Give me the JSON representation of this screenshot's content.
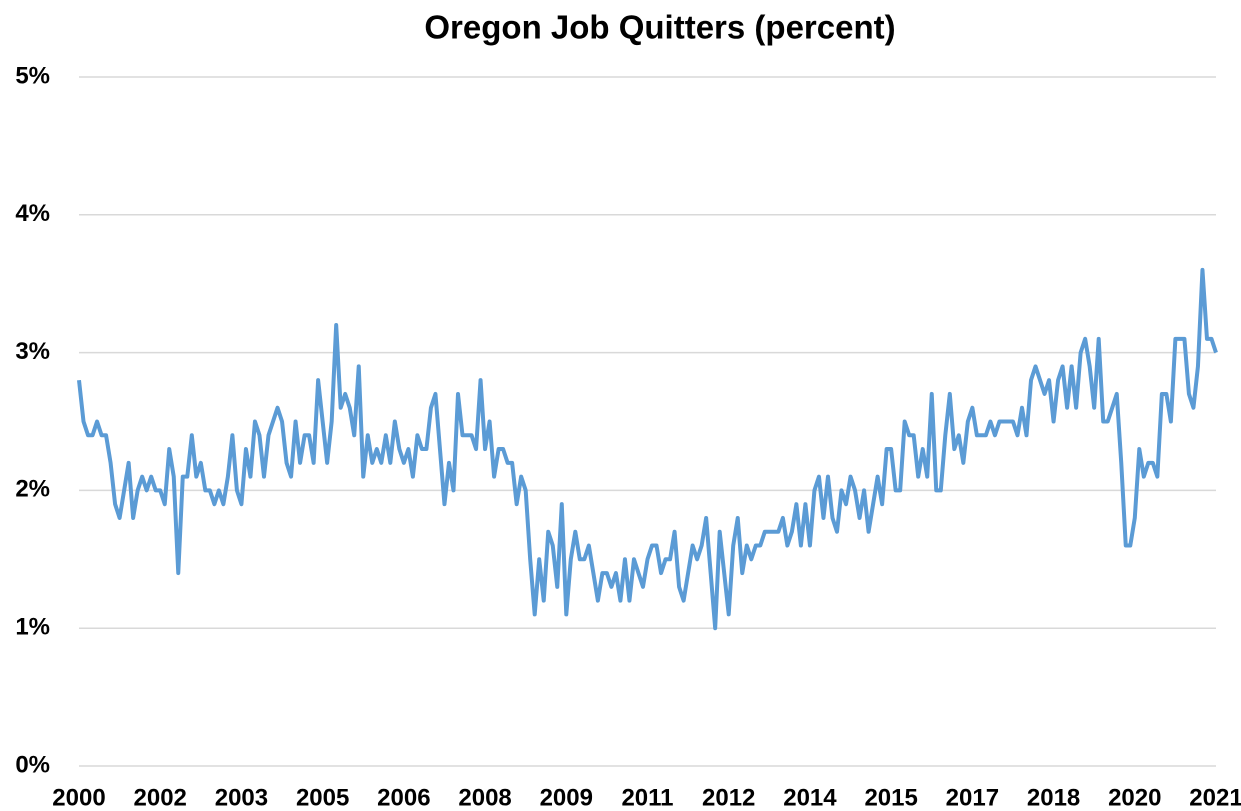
{
  "chart_data": {
    "type": "line",
    "title": "Oregon Job Quitters (percent)",
    "categories": [
      "2000",
      null,
      null,
      null,
      null,
      null,
      null,
      null,
      null,
      null,
      null,
      null,
      null,
      null,
      null,
      null,
      null,
      null,
      "2002",
      null,
      null,
      null,
      null,
      null,
      null,
      null,
      null,
      null,
      null,
      null,
      null,
      null,
      null,
      null,
      null,
      null,
      "2003",
      null,
      null,
      null,
      null,
      null,
      null,
      null,
      null,
      null,
      null,
      null,
      null,
      null,
      null,
      null,
      null,
      null,
      "2005",
      null,
      null,
      null,
      null,
      null,
      null,
      null,
      null,
      null,
      null,
      null,
      null,
      null,
      null,
      null,
      null,
      null,
      "2006",
      null,
      null,
      null,
      null,
      null,
      null,
      null,
      null,
      null,
      null,
      null,
      null,
      null,
      null,
      null,
      null,
      null,
      "2008",
      null,
      null,
      null,
      null,
      null,
      null,
      null,
      null,
      null,
      null,
      null,
      null,
      null,
      null,
      null,
      null,
      null,
      "2009",
      null,
      null,
      null,
      null,
      null,
      null,
      null,
      null,
      null,
      null,
      null,
      null,
      null,
      null,
      null,
      null,
      null,
      "2011",
      null,
      null,
      null,
      null,
      null,
      null,
      null,
      null,
      null,
      null,
      null,
      null,
      null,
      null,
      null,
      null,
      null,
      "2012",
      null,
      null,
      null,
      null,
      null,
      null,
      null,
      null,
      null,
      null,
      null,
      null,
      null,
      null,
      null,
      null,
      null,
      "2014",
      null,
      null,
      null,
      null,
      null,
      null,
      null,
      null,
      null,
      null,
      null,
      null,
      null,
      null,
      null,
      null,
      null,
      "2015",
      null,
      null,
      null,
      null,
      null,
      null,
      null,
      null,
      null,
      null,
      null,
      null,
      null,
      null,
      null,
      null,
      null,
      "2017",
      null,
      null,
      null,
      null,
      null,
      null,
      null,
      null,
      null,
      null,
      null,
      null,
      null,
      null,
      null,
      null,
      null,
      "2018",
      null,
      null,
      null,
      null,
      null,
      null,
      null,
      null,
      null,
      null,
      null,
      null,
      null,
      null,
      null,
      null,
      null,
      "2020",
      null,
      null,
      null,
      null,
      null,
      null,
      null,
      null,
      null,
      null,
      null,
      null,
      null,
      null,
      null,
      null,
      null,
      "2021"
    ],
    "values": [
      2.8,
      2.5,
      2.4,
      2.4,
      2.5,
      2.4,
      2.4,
      2.2,
      1.9,
      1.8,
      2.0,
      2.2,
      1.8,
      2.0,
      2.1,
      2.0,
      2.1,
      2.0,
      2.0,
      1.9,
      2.3,
      2.1,
      1.4,
      2.1,
      2.1,
      2.4,
      2.1,
      2.2,
      2.0,
      2.0,
      1.9,
      2.0,
      1.9,
      2.1,
      2.4,
      2.0,
      1.9,
      2.3,
      2.1,
      2.5,
      2.4,
      2.1,
      2.4,
      2.5,
      2.6,
      2.5,
      2.2,
      2.1,
      2.5,
      2.2,
      2.4,
      2.4,
      2.2,
      2.8,
      2.5,
      2.2,
      2.5,
      3.2,
      2.6,
      2.7,
      2.6,
      2.4,
      2.9,
      2.1,
      2.4,
      2.2,
      2.3,
      2.2,
      2.4,
      2.2,
      2.5,
      2.3,
      2.2,
      2.3,
      2.1,
      2.4,
      2.3,
      2.3,
      2.6,
      2.7,
      2.3,
      1.9,
      2.2,
      2.0,
      2.7,
      2.4,
      2.4,
      2.4,
      2.3,
      2.8,
      2.3,
      2.5,
      2.1,
      2.3,
      2.3,
      2.2,
      2.2,
      1.9,
      2.1,
      2.0,
      1.5,
      1.1,
      1.5,
      1.2,
      1.7,
      1.6,
      1.3,
      1.9,
      1.1,
      1.5,
      1.7,
      1.5,
      1.5,
      1.6,
      1.4,
      1.2,
      1.4,
      1.4,
      1.3,
      1.4,
      1.2,
      1.5,
      1.2,
      1.5,
      1.4,
      1.3,
      1.5,
      1.6,
      1.6,
      1.4,
      1.5,
      1.5,
      1.7,
      1.3,
      1.2,
      1.4,
      1.6,
      1.5,
      1.6,
      1.8,
      1.4,
      1.0,
      1.7,
      1.4,
      1.1,
      1.6,
      1.8,
      1.4,
      1.6,
      1.5,
      1.6,
      1.6,
      1.7,
      1.7,
      1.7,
      1.7,
      1.8,
      1.6,
      1.7,
      1.9,
      1.6,
      1.9,
      1.6,
      2.0,
      2.1,
      1.8,
      2.1,
      1.8,
      1.7,
      2.0,
      1.9,
      2.1,
      2.0,
      1.8,
      2.0,
      1.7,
      1.9,
      2.1,
      1.9,
      2.3,
      2.3,
      2.0,
      2.0,
      2.5,
      2.4,
      2.4,
      2.1,
      2.3,
      2.1,
      2.7,
      2.0,
      2.0,
      2.4,
      2.7,
      2.3,
      2.4,
      2.2,
      2.5,
      2.6,
      2.4,
      2.4,
      2.4,
      2.5,
      2.4,
      2.5,
      2.5,
      2.5,
      2.5,
      2.4,
      2.6,
      2.4,
      2.8,
      2.9,
      2.8,
      2.7,
      2.8,
      2.5,
      2.8,
      2.9,
      2.6,
      2.9,
      2.6,
      3.0,
      3.1,
      2.9,
      2.6,
      3.1,
      2.5,
      2.5,
      2.6,
      2.7,
      2.2,
      1.6,
      1.6,
      1.8,
      2.3,
      2.1,
      2.2,
      2.2,
      2.1,
      2.7,
      2.7,
      2.5,
      3.1,
      3.1,
      3.1,
      2.7,
      2.6,
      2.9,
      3.6,
      3.1,
      3.1,
      3.0
    ],
    "color": "#5b9bd5",
    "ylim": [
      0,
      5
    ],
    "yticks": [
      {
        "value": 0,
        "label": "0%"
      },
      {
        "value": 1,
        "label": "1%"
      },
      {
        "value": 2,
        "label": "2%"
      },
      {
        "value": 3,
        "label": "3%"
      },
      {
        "value": 4,
        "label": "4%"
      },
      {
        "value": 5,
        "label": "5%"
      }
    ],
    "grid": true
  }
}
